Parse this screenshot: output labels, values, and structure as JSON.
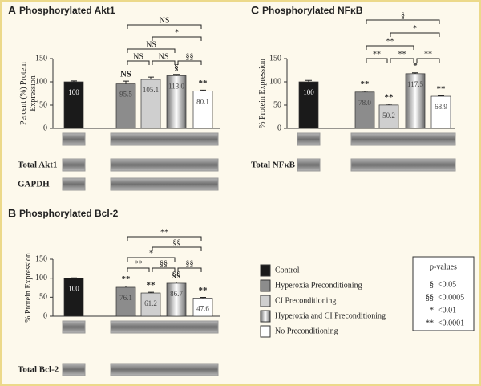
{
  "chart_data": [
    {
      "type": "bar",
      "panel": "A",
      "title": "Phosphorylated Akt1",
      "ylabel_lines": [
        "Percent (%) Protein",
        "Expression"
      ],
      "values": [
        100,
        95.5,
        105.1,
        113.0,
        80.1
      ],
      "value_labels": [
        "100",
        "95.5",
        "105.1",
        "113.0",
        "80.1"
      ],
      "errors": [
        2,
        6,
        5,
        3,
        2
      ],
      "bar_marks": [
        null,
        "NS",
        null,
        "§",
        "**"
      ],
      "ylim": [
        0,
        150
      ],
      "yticks": [
        0,
        50,
        100,
        150
      ],
      "brackets": [
        {
          "from": 1,
          "to": 2,
          "label": "NS"
        },
        {
          "from": 2,
          "to": 3,
          "label": "NS"
        },
        {
          "from": 3,
          "to": 4,
          "label": "§§"
        },
        {
          "from": 1,
          "to": 3,
          "label": "NS"
        },
        {
          "from": 2,
          "to": 4,
          "label": "*"
        },
        {
          "from": 1,
          "to": 4,
          "label": "NS"
        }
      ],
      "blot_labels": [
        "Total Akt1",
        "GAPDH"
      ]
    },
    {
      "type": "bar",
      "panel": "B",
      "title": "Phosphorylated Bcl-2",
      "ylabel_lines": [
        "% Protein Expression"
      ],
      "values": [
        100,
        76.1,
        61.2,
        86.7,
        47.6
      ],
      "value_labels": [
        "100",
        "76.1",
        "61.2",
        "86.7",
        "47.6"
      ],
      "errors": [
        1,
        3,
        2,
        3,
        2
      ],
      "bar_marks": [
        null,
        "**",
        "**",
        "§§",
        "**"
      ],
      "ylim": [
        0,
        150
      ],
      "yticks": [
        0,
        50,
        100,
        150
      ],
      "brackets": [
        {
          "from": 1,
          "to": 2,
          "label": "**"
        },
        {
          "from": 2,
          "to": 3,
          "label": "§§"
        },
        {
          "from": 3,
          "to": 4,
          "label": "§§"
        },
        {
          "from": 1,
          "to": 3,
          "label": "*"
        },
        {
          "from": 2,
          "to": 4,
          "label": "§§"
        },
        {
          "from": 1,
          "to": 4,
          "label": "**"
        }
      ],
      "blot_labels": [
        "Total Bcl-2"
      ]
    },
    {
      "type": "bar",
      "panel": "C",
      "title": "Phosphorylated NFκB",
      "ylabel_lines": [
        "% Protein Expression"
      ],
      "values": [
        100,
        78.0,
        50.2,
        117.5,
        68.9
      ],
      "value_labels": [
        "100",
        "78.0",
        "50.2",
        "117.5",
        "68.9"
      ],
      "errors": [
        3,
        2,
        2,
        2,
        1
      ],
      "bar_marks": [
        null,
        "**",
        "**",
        "*",
        "**"
      ],
      "ylim": [
        0,
        150
      ],
      "yticks": [
        0,
        50,
        100,
        150
      ],
      "brackets": [
        {
          "from": 1,
          "to": 2,
          "label": "**"
        },
        {
          "from": 2,
          "to": 3,
          "label": "**"
        },
        {
          "from": 3,
          "to": 4,
          "label": "**"
        },
        {
          "from": 1,
          "to": 3,
          "label": "**"
        },
        {
          "from": 2,
          "to": 4,
          "label": "*"
        },
        {
          "from": 1,
          "to": 4,
          "label": "§"
        }
      ],
      "blot_labels": [
        "Total NFκB"
      ]
    }
  ],
  "legend": {
    "items": [
      {
        "name": "Control",
        "color": "#1a1a1a",
        "style": "solid"
      },
      {
        "name": "Hyperoxia Preconditioning",
        "color": "#8c8c8c",
        "style": "solid"
      },
      {
        "name": "CI Preconditioning",
        "color": "#cfcfcf",
        "style": "solid"
      },
      {
        "name": "Hyperoxia and CI Preconditioning",
        "color": "#8c8c8c",
        "style": "gradient"
      },
      {
        "name": "No Preconditioning",
        "color": "#ffffff",
        "style": "solid"
      }
    ]
  },
  "pvalues": {
    "title": "p-values",
    "rows": [
      {
        "symbol": "§",
        "label": "<0.05"
      },
      {
        "symbol": "§§",
        "label": "<0.0005"
      },
      {
        "symbol": "*",
        "label": "<0.01"
      },
      {
        "symbol": "**",
        "label": "<0.0001"
      }
    ]
  }
}
